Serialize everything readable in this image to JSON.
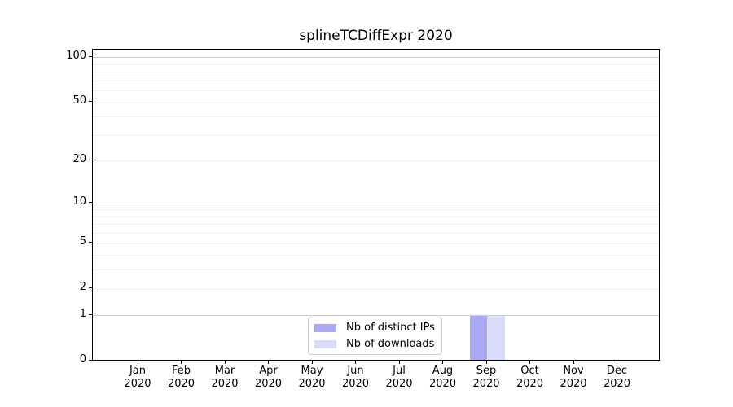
{
  "chart_data": {
    "type": "bar",
    "title": "splineTCDiffExpr 2020",
    "categories": [
      "Jan",
      "Feb",
      "Mar",
      "Apr",
      "May",
      "Jun",
      "Jul",
      "Aug",
      "Sep",
      "Oct",
      "Nov",
      "Dec"
    ],
    "year_label": "2020",
    "series": [
      {
        "name": "Nb of distinct IPs",
        "color": "#a9a9f4",
        "values": [
          0,
          0,
          0,
          0,
          0,
          0,
          0,
          0,
          1,
          0,
          0,
          0
        ]
      },
      {
        "name": "Nb of downloads",
        "color": "#dadaf9",
        "values": [
          0,
          0,
          0,
          0,
          0,
          0,
          0,
          0,
          1,
          0,
          0,
          0
        ]
      }
    ],
    "y_ticks": [
      0,
      1,
      2,
      5,
      10,
      20,
      50,
      100
    ],
    "y_scale": "log1p",
    "ylim": [
      0,
      110
    ],
    "grid": true,
    "legend_position": "lower center inside",
    "colors": {
      "axis": "#000000",
      "grid_major": "#c9c9c9",
      "grid_minor": "#efefef",
      "background": "#ffffff",
      "text": "#000000"
    }
  }
}
